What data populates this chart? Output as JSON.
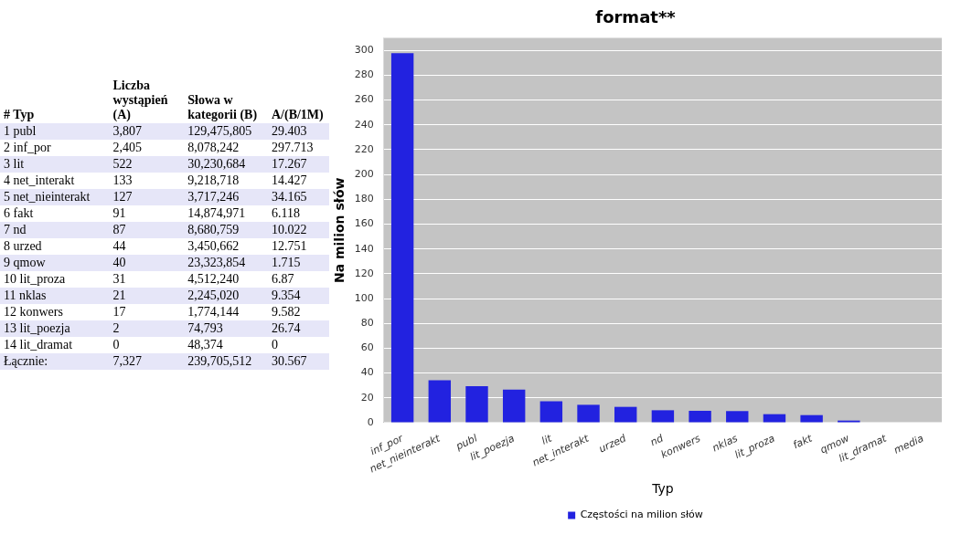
{
  "chart_data": [
    {
      "type": "other",
      "annotations": [
        "# Typ",
        "Liczba wystąpień (A)",
        "Słowa w kategorii (B)",
        "A/(B/1M)",
        "1 publ",
        "3,807",
        "129,475,805",
        "29.403",
        "2 inf_por",
        "2,405",
        "8,078,242",
        "297.713",
        "3 lit",
        "522",
        "30,230,684",
        "17.267",
        "4 net_interakt",
        "133",
        "9,218,718",
        "14.427",
        "5 net_nieinterakt",
        "127",
        "3,717,246",
        "34.165",
        "6 fakt",
        "91",
        "14,874,971",
        "6.118",
        "7 nd",
        "87",
        "8,680,759",
        "10.022",
        "8 urzed",
        "44",
        "3,450,662",
        "12.751",
        "9 qmow",
        "40",
        "23,323,854",
        "1.715",
        "10 lit_proza",
        "31",
        "4,512,240",
        "6.87",
        "11 nklas",
        "21",
        "2,245,020",
        "9.354",
        "12 konwers",
        "17",
        "1,774,144",
        "9.582",
        "13 lit_poezja",
        "2",
        "74,793",
        "26.74",
        "14 lit_dramat",
        "0",
        "48,374",
        "0",
        "Łącznie:",
        "7,327",
        "239,705,512",
        "30.567"
      ]
    },
    {
      "type": "bar",
      "title": "format**",
      "xlabel": "Typ",
      "ylabel": "Na milion słów",
      "categories": [
        "inf_por",
        "net_nieinterakt",
        "publ",
        "lit_poezja",
        "lit",
        "net_interakt",
        "urzed",
        "nd",
        "konwers",
        "nklas",
        "lit_proza",
        "fakt",
        "qmow",
        "lit_dramat",
        "media"
      ],
      "series": [
        {
          "name": "Częstości na milion słów",
          "color": "#2222e0",
          "values": [
            297.713,
            34.165,
            29.403,
            26.74,
            17.267,
            14.427,
            12.751,
            10.022,
            9.582,
            9.354,
            6.87,
            6.118,
            1.715,
            0,
            0
          ]
        }
      ],
      "ylim": [
        0,
        310
      ],
      "yticks": [
        0,
        20,
        40,
        60,
        80,
        100,
        120,
        140,
        160,
        180,
        200,
        220,
        240,
        260,
        280,
        300
      ],
      "grid": "y",
      "legend": "bottom"
    }
  ]
}
